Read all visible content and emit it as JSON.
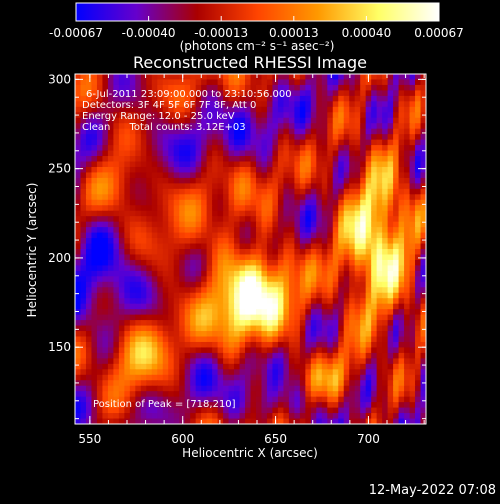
{
  "chart_data": {
    "type": "heatmap",
    "title": "Reconstructed RHESSI Image",
    "xlabel": "Heliocentric X (arcsec)",
    "ylabel": "Heliocentric Y (arcsec)",
    "xlim": [
      542,
      731
    ],
    "ylim": [
      107,
      303
    ],
    "x_ticks": [
      "550",
      "600",
      "650",
      "700"
    ],
    "y_ticks": [
      "150",
      "200",
      "250",
      "300"
    ],
    "colorbar": {
      "range": [
        -0.00067,
        0.00067
      ],
      "ticks": [
        "-0.00067",
        "-0.00040",
        "-0.00013",
        "0.00013",
        "0.00040",
        "0.00067"
      ],
      "unit_label": "(photons cm⁻² s⁻¹ asec⁻²)",
      "colors": [
        "#0000ff",
        "#6600cc",
        "#aa0000",
        "#ff4400",
        "#ff9900",
        "#ffff66",
        "#ffffff"
      ]
    },
    "info_lines": [
      "6-Jul-2011 23:09:00.000 to 23:10:56.000",
      "Detectors: 3F 4F 5F 6F 7F 8F, Att 0",
      "Energy Range: 12.0 - 25.0 keV",
      "Clean      Total counts: 3.12E+03"
    ],
    "peak_annotation": "Position of Peak = [718,210]",
    "peak": [
      718,
      210
    ],
    "grid": false,
    "legend": "none"
  },
  "footer": {
    "timestamp": "12-May-2022 07:08"
  }
}
